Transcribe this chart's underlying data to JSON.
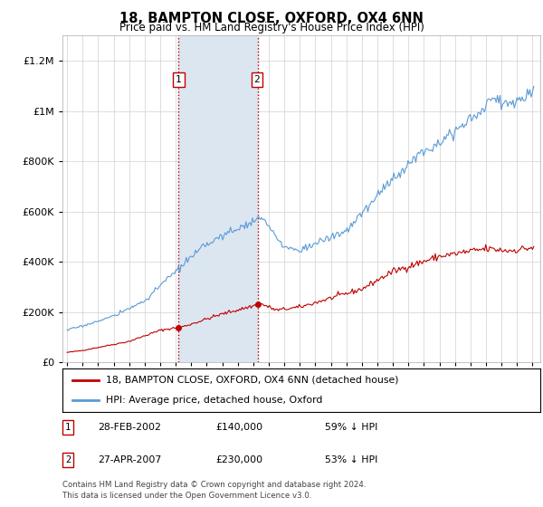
{
  "title": "18, BAMPTON CLOSE, OXFORD, OX4 6NN",
  "subtitle": "Price paid vs. HM Land Registry's House Price Index (HPI)",
  "legend_line1": "18, BAMPTON CLOSE, OXFORD, OX4 6NN (detached house)",
  "legend_line2": "HPI: Average price, detached house, Oxford",
  "sale1_date": "28-FEB-2002",
  "sale1_price": "£140,000",
  "sale1_hpi": "59% ↓ HPI",
  "sale1_year": 2002.15,
  "sale1_value": 140000,
  "sale2_date": "27-APR-2007",
  "sale2_price": "£230,000",
  "sale2_hpi": "53% ↓ HPI",
  "sale2_year": 2007.32,
  "sale2_value": 230000,
  "footnote": "Contains HM Land Registry data © Crown copyright and database right 2024.\nThis data is licensed under the Open Government Licence v3.0.",
  "hpi_color": "#5b9bd5",
  "price_color": "#c00000",
  "shade_color": "#dce6f1",
  "marker_color": "#c00000",
  "ylim_max": 1300000,
  "background_color": "#ffffff",
  "grid_color": "#d0d0d0"
}
